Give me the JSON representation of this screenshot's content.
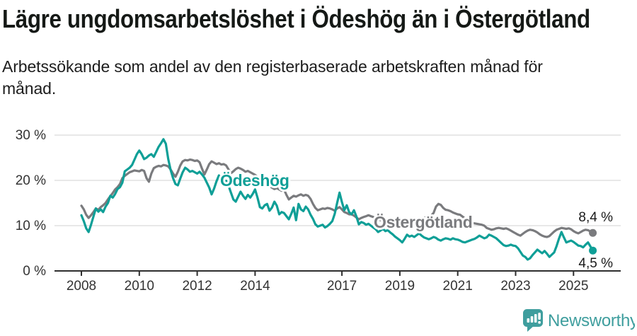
{
  "header": {
    "title": "Lägre ungdomsarbetslöshet i Ödeshög än i Östergötland",
    "subtitle_lines": [
      "Arbetssökande som andel av den registerbaserade arbetskraften månad för",
      "månad."
    ]
  },
  "colors": {
    "odeshog": "#0f9f97",
    "ostergotland": "#7a7b7e",
    "brand": "#3f9e9e",
    "grid": "#d9d9d9",
    "axis": "#2e2e2e",
    "tick_text": "#333333",
    "end_label_text": "#1a1a1a"
  },
  "chart_data": {
    "type": "line",
    "unit": "%",
    "frequency": "monthly",
    "x_range": [
      "2008-01",
      "2025-09"
    ],
    "ylim": [
      0,
      30
    ],
    "grid": "horizontal",
    "legend_position": "inline-labels",
    "yticks": [
      {
        "value": 0,
        "label": "0 %"
      },
      {
        "value": 10,
        "label": "10 %"
      },
      {
        "value": 20,
        "label": "20 %"
      },
      {
        "value": 30,
        "label": "30 %"
      }
    ],
    "xticks": [
      {
        "year": 2008,
        "label": "2008"
      },
      {
        "year": 2010,
        "label": "2010"
      },
      {
        "year": 2012,
        "label": "2012"
      },
      {
        "year": 2014,
        "label": "2014"
      },
      {
        "year": 2017,
        "label": "2017"
      },
      {
        "year": 2019,
        "label": "2019"
      },
      {
        "year": 2021,
        "label": "2021"
      },
      {
        "year": 2023,
        "label": "2023"
      },
      {
        "year": 2025,
        "label": "2025"
      }
    ],
    "series": [
      {
        "name": "Ödeshög",
        "color": "#0f9f97",
        "end_label": "4,5 %",
        "last_value": 4.5,
        "values": [
          12.3,
          11.0,
          9.4,
          8.6,
          10.2,
          12.0,
          13.8,
          13.1,
          13.6,
          13.0,
          14.2,
          15.0,
          16.6,
          16.2,
          17.0,
          18.1,
          18.5,
          19.5,
          22.0,
          22.4,
          22.8,
          23.4,
          24.6,
          25.8,
          26.6,
          25.8,
          24.7,
          25.0,
          25.5,
          25.8,
          25.2,
          26.3,
          27.4,
          28.2,
          29.1,
          28.1,
          24.7,
          22.3,
          20.5,
          19.2,
          18.9,
          20.4,
          21.8,
          22.8,
          22.4,
          21.9,
          22.1,
          21.8,
          21.5,
          21.9,
          21.3,
          20.6,
          19.5,
          18.4,
          16.9,
          18.2,
          19.8,
          21.1,
          20.4,
          19.6,
          19.9,
          18.8,
          17.3,
          15.8,
          15.3,
          16.4,
          17.5,
          16.6,
          15.9,
          16.8,
          16.2,
          17.0,
          18.0,
          16.2,
          14.1,
          13.8,
          14.5,
          14.8,
          13.3,
          14.0,
          15.3,
          14.4,
          12.5,
          13.0,
          12.8,
          12.1,
          11.4,
          12.6,
          14.0,
          11.2,
          14.8,
          13.6,
          13.2,
          14.2,
          13.6,
          12.4,
          11.5,
          10.3,
          9.8,
          10.0,
          10.2,
          9.6,
          9.9,
          10.4,
          11.0,
          12.6,
          15.0,
          17.3,
          15.2,
          13.4,
          14.5,
          13.0,
          12.5,
          13.4,
          12.0,
          10.3,
          10.8,
          10.6,
          10.2,
          10.4,
          10.0,
          9.6,
          9.2,
          8.6,
          8.9,
          9.3,
          8.8,
          9.0,
          8.5,
          8.1,
          7.6,
          7.2,
          6.8,
          6.3,
          7.1,
          8.0,
          7.6,
          7.8,
          7.5,
          7.9,
          8.3,
          7.8,
          7.4,
          7.2,
          7.0,
          7.2,
          7.5,
          7.3,
          6.9,
          6.7,
          7.0,
          7.2,
          7.1,
          6.9,
          7.2,
          7.0,
          6.9,
          6.7,
          6.4,
          6.3,
          6.5,
          6.7,
          6.9,
          7.1,
          7.4,
          7.8,
          7.5,
          7.2,
          7.4,
          8.0,
          7.8,
          7.5,
          7.2,
          6.7,
          6.2,
          5.7,
          5.5,
          5.6,
          5.8,
          5.6,
          5.5,
          5.0,
          4.2,
          3.4,
          3.1,
          2.5,
          2.8,
          3.5,
          4.1,
          4.7,
          4.3,
          3.9,
          4.4,
          3.8,
          3.1,
          3.6,
          4.1,
          5.5,
          7.2,
          8.6,
          7.4,
          6.3,
          6.5,
          6.7,
          6.4,
          6.0,
          5.6,
          5.5,
          5.2,
          5.8,
          6.3,
          5.4,
          4.5
        ]
      },
      {
        "name": "Östergötland",
        "color": "#7a7b7e",
        "end_label": "8,4 %",
        "last_value": 8.4,
        "values": [
          14.4,
          13.6,
          12.4,
          11.7,
          12.3,
          13.0,
          13.8,
          13.5,
          14.1,
          14.5,
          15.0,
          15.8,
          16.5,
          17.2,
          18.0,
          18.5,
          19.2,
          20.5,
          21.0,
          21.4,
          21.8,
          22.0,
          22.2,
          22.1,
          22.0,
          22.3,
          22.1,
          20.5,
          19.7,
          21.5,
          22.7,
          23.0,
          23.2,
          23.1,
          23.4,
          23.3,
          23.1,
          22.4,
          21.5,
          20.8,
          21.9,
          23.3,
          24.2,
          24.5,
          24.4,
          24.6,
          24.5,
          24.3,
          24.4,
          24.0,
          22.6,
          21.3,
          22.4,
          23.6,
          24.2,
          23.9,
          23.6,
          23.8,
          23.5,
          23.6,
          23.3,
          22.4,
          21.6,
          22.0,
          22.5,
          22.8,
          22.6,
          22.3,
          21.9,
          22.1,
          21.8,
          21.5,
          21.2,
          20.8,
          20.3,
          19.9,
          19.4,
          19.0,
          18.7,
          18.4,
          18.1,
          18.3,
          18.0,
          17.7,
          18.0,
          16.8,
          15.8,
          16.2,
          16.6,
          16.4,
          16.7,
          16.9,
          16.6,
          16.8,
          16.6,
          15.9,
          14.8,
          13.9,
          13.4,
          13.6,
          13.8,
          13.7,
          13.9,
          13.8,
          13.6,
          13.3,
          13.8,
          14.1,
          13.6,
          13.0,
          12.8,
          12.5,
          12.5,
          12.2,
          11.8,
          11.4,
          11.7,
          11.9,
          12.1,
          12.3,
          12.1,
          11.9,
          11.6,
          11.4,
          11.2,
          11.4,
          11.1,
          10.9,
          11.0,
          10.8,
          10.9,
          11.0,
          10.9,
          10.7,
          10.8,
          11.0,
          11.2,
          11.3,
          11.2,
          11.4,
          11.6,
          11.5,
          11.7,
          11.9,
          12.0,
          12.2,
          12.8,
          14.2,
          14.8,
          14.6,
          13.9,
          13.5,
          13.4,
          13.2,
          12.9,
          12.7,
          12.5,
          12.4,
          12.0,
          11.6,
          11.2,
          10.8,
          10.6,
          10.5,
          10.4,
          10.3,
          10.2,
          10.0,
          9.5,
          9.3,
          9.1,
          9.2,
          9.4,
          9.5,
          9.4,
          9.3,
          9.4,
          9.2,
          8.9,
          8.6,
          8.3,
          8.0,
          7.8,
          8.2,
          8.6,
          8.9,
          9.1,
          9.0,
          8.8,
          8.5,
          8.1,
          7.8,
          7.6,
          7.5,
          7.7,
          8.2,
          8.7,
          9.1,
          9.3,
          9.5,
          9.4,
          9.3,
          9.4,
          9.2,
          8.8,
          8.5,
          8.3,
          8.6,
          8.9,
          9.1,
          9.0,
          8.7,
          8.4
        ]
      }
    ]
  },
  "footer": {
    "brand": "Newsworthy"
  }
}
